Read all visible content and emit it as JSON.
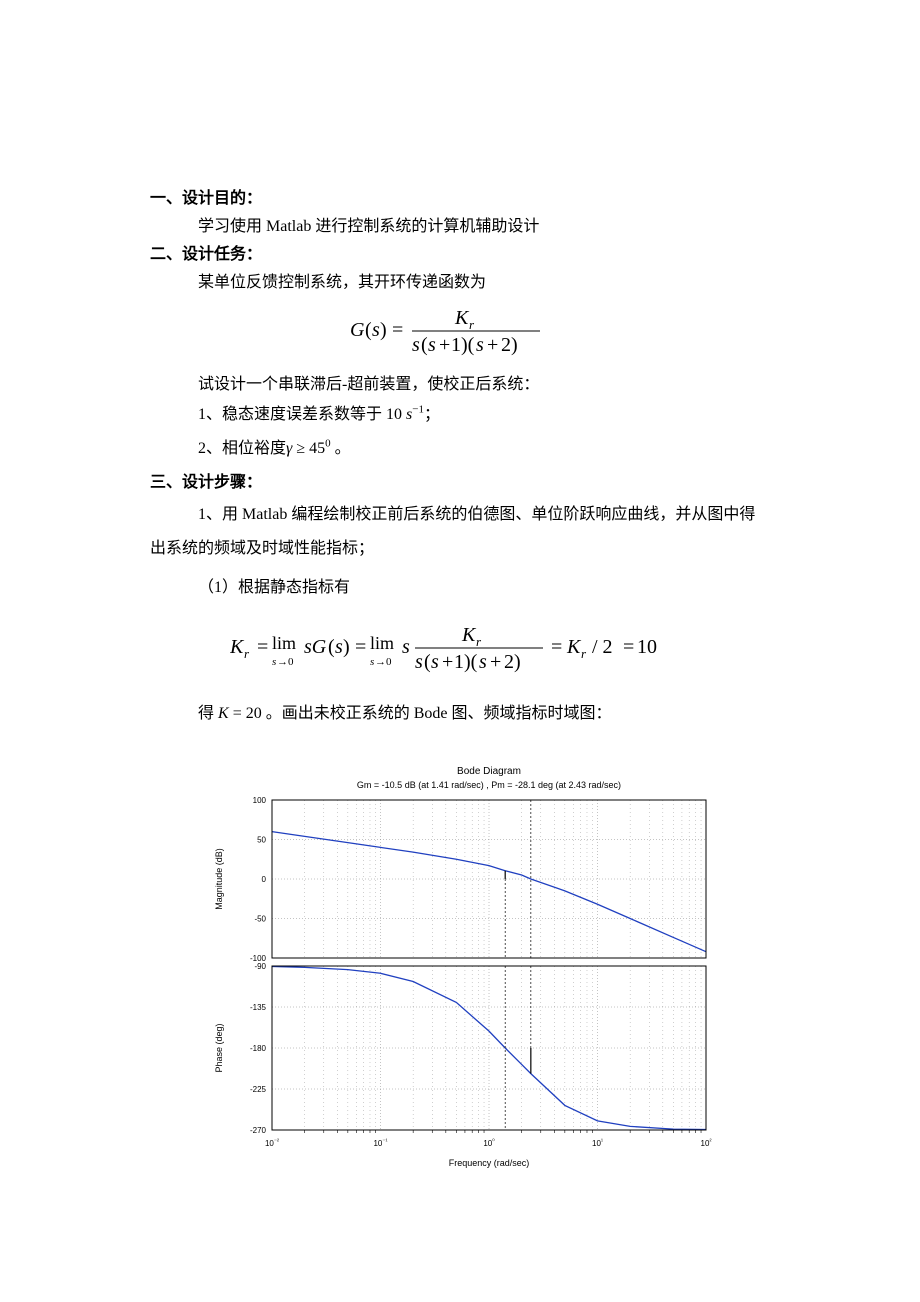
{
  "sec1": {
    "heading": "一、设计目的：",
    "body": "学习使用 Matlab 进行控制系统的计算机辅助设计"
  },
  "sec2": {
    "heading": "二、设计任务：",
    "body1": "某单位反馈控制系统，其开环传递函数为",
    "body2": "试设计一个串联滞后-超前装置，使校正后系统：",
    "item1_a": "1、稳态速度误差系数等于 10",
    "item1_b": "；",
    "item2_a": "2、相位裕度",
    "item2_b": "。"
  },
  "sec3": {
    "heading": "三、设计步骤：",
    "p1": "1、用 Matlab 编程绘制校正前后系统的伯德图、单位阶跃响应曲线，并从图中得出系统的频域及时域性能指标；",
    "p2": "（1）根据静态指标有",
    "p3_a": "得",
    "p3_b": "。画出未校正系统的 Bode 图、频域指标时域图："
  },
  "bode": {
    "title1": "Bode Diagram",
    "title2": "Gm = -10.5 dB (at 1.41 rad/sec) ,  Pm = -28.1 deg (at 2.43 rad/sec)",
    "mag_label": "Magnitude (dB)",
    "phase_label": "Phase (deg)",
    "x_label": "Frequency  (rad/sec)",
    "mag": {
      "ylim": [
        -100,
        100
      ],
      "yticks": [
        -100,
        -50,
        0,
        50,
        100
      ],
      "data": [
        [
          0.01,
          60
        ],
        [
          0.02,
          54
        ],
        [
          0.05,
          46
        ],
        [
          0.1,
          40
        ],
        [
          0.2,
          34
        ],
        [
          0.5,
          25
        ],
        [
          1,
          17
        ],
        [
          1.41,
          10.5
        ],
        [
          2,
          5
        ],
        [
          2.43,
          0
        ],
        [
          5,
          -15
        ],
        [
          10,
          -32
        ],
        [
          20,
          -50
        ],
        [
          50,
          -74
        ],
        [
          100,
          -92
        ]
      ]
    },
    "phase": {
      "ylim": [
        -270,
        -90
      ],
      "yticks": [
        -270,
        -225,
        -180,
        -135,
        -90
      ],
      "data": [
        [
          0.01,
          -90.5
        ],
        [
          0.02,
          -91.5
        ],
        [
          0.05,
          -94
        ],
        [
          0.1,
          -98
        ],
        [
          0.2,
          -107
        ],
        [
          0.5,
          -130
        ],
        [
          1,
          -161.5
        ],
        [
          1.41,
          -180
        ],
        [
          2,
          -198
        ],
        [
          2.43,
          -208.1
        ],
        [
          5,
          -243
        ],
        [
          10,
          -260
        ],
        [
          20,
          -266
        ],
        [
          50,
          -269
        ],
        [
          100,
          -269.5
        ]
      ]
    },
    "markers": {
      "gm_freq": 1.41,
      "pm_freq": 2.43
    },
    "xlim": [
      0.01,
      100
    ],
    "xticks": [
      0.01,
      0.1,
      1,
      10,
      100
    ],
    "xtick_labels": [
      "10⁻²",
      "10⁻¹",
      "10⁰",
      "10¹",
      "10²"
    ],
    "colors": {
      "line": "#2040c0",
      "axis": "#000000",
      "grid": "#888888",
      "bg": "#ffffff",
      "text": "#000000"
    },
    "fontsize": {
      "title": 10,
      "subtitle": 9,
      "label": 9,
      "tick": 8
    }
  }
}
